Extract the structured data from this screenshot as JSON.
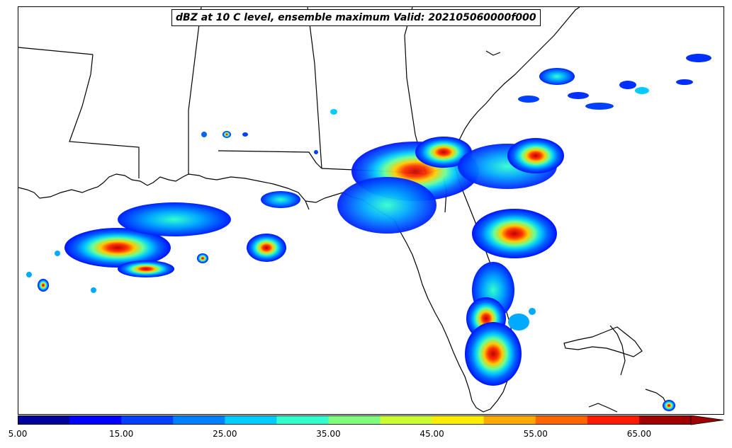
{
  "title": "dBZ at 10 C level, ensemble maximum Valid: 202105060000f000",
  "colorbar": {
    "ticks": [
      "5.00",
      "15.00",
      "25.00",
      "35.00",
      "45.00",
      "55.00",
      "65.00"
    ],
    "colors": [
      "#00009c",
      "#0000ff",
      "#0040ff",
      "#0080ff",
      "#00ccff",
      "#33ffcc",
      "#80ff80",
      "#ccff33",
      "#ffee00",
      "#ffaa00",
      "#ff6600",
      "#ff1a00",
      "#a00000"
    ],
    "extend": "max",
    "min": 5,
    "max": 70,
    "step": 5
  }
}
